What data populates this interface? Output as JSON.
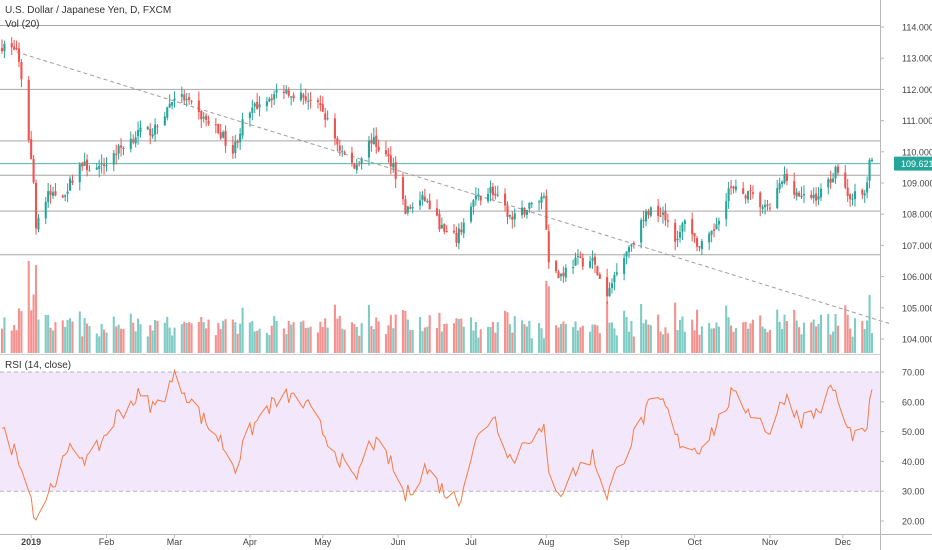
{
  "header": {
    "symbol_title": "U.S. Dollar / Japanese Yen, D, FXCM",
    "volume_label": "Vol (20)",
    "rsi_label": "RSI (14, close)"
  },
  "price_axis": {
    "ticks": [
      "114.000",
      "113.000",
      "112.000",
      "111.000",
      "110.000",
      "109.000",
      "108.000",
      "107.000",
      "106.000",
      "105.000",
      "104.000"
    ],
    "last_price": "109.621"
  },
  "rsi_axis": {
    "ticks": [
      "70.00",
      "60.00",
      "50.00",
      "40.00",
      "30.00",
      "20.00"
    ]
  },
  "time_axis": {
    "labels": [
      "2019",
      "Feb",
      "Mar",
      "Apr",
      "May",
      "Jun",
      "Jul",
      "Aug",
      "Sep",
      "Oct",
      "Nov",
      "Dec"
    ]
  },
  "colors": {
    "up": "#26a69a",
    "down": "#ef5350",
    "vol_up": "#7fccc4",
    "vol_down": "#f5928f",
    "rsi_line": "#f57c45",
    "rsi_band": "#f3e7fb",
    "last_price_bg": "#26a69a",
    "trendline": "#9e9e9e"
  },
  "chart_data": [
    {
      "type": "candlestick",
      "title": "U.S. Dollar / Japanese Yen, D, FXCM",
      "x_range": [
        "2018-12-20",
        "2019-12-13"
      ],
      "ylim": [
        103.6,
        114.4
      ],
      "horizontal_levels": [
        114.05,
        112.0,
        110.35,
        109.25,
        108.1,
        106.7
      ],
      "last_price": 109.621,
      "trendline": {
        "from": [
          "2018-12-26",
          113.2
        ],
        "to": [
          "2019-12-20",
          104.5
        ]
      },
      "anchors": [
        [
          "2018-12-20",
          113.4
        ],
        [
          "2018-12-26",
          113.3
        ],
        [
          "2018-12-31",
          110.5
        ],
        [
          "2019-01-02",
          109.0
        ],
        [
          "2019-01-03",
          107.7
        ],
        [
          "2019-01-08",
          108.6
        ],
        [
          "2019-01-15",
          108.7
        ],
        [
          "2019-01-21",
          109.6
        ],
        [
          "2019-01-29",
          109.4
        ],
        [
          "2019-02-05",
          110.0
        ],
        [
          "2019-02-14",
          110.6
        ],
        [
          "2019-02-21",
          110.7
        ],
        [
          "2019-03-01",
          111.8
        ],
        [
          "2019-03-05",
          111.7
        ],
        [
          "2019-03-11",
          111.2
        ],
        [
          "2019-03-20",
          110.6
        ],
        [
          "2019-03-25",
          110.0
        ],
        [
          "2019-03-29",
          110.9
        ],
        [
          "2019-04-05",
          111.6
        ],
        [
          "2019-04-15",
          112.0
        ],
        [
          "2019-04-25",
          111.7
        ],
        [
          "2019-05-01",
          111.3
        ],
        [
          "2019-05-08",
          110.1
        ],
        [
          "2019-05-14",
          109.5
        ],
        [
          "2019-05-21",
          110.4
        ],
        [
          "2019-05-30",
          109.6
        ],
        [
          "2019-06-04",
          108.1
        ],
        [
          "2019-06-12",
          108.5
        ],
        [
          "2019-06-20",
          107.4
        ],
        [
          "2019-06-25",
          107.2
        ],
        [
          "2019-07-02",
          108.4
        ],
        [
          "2019-07-09",
          108.8
        ],
        [
          "2019-07-18",
          107.8
        ],
        [
          "2019-07-24",
          108.2
        ],
        [
          "2019-07-31",
          108.6
        ],
        [
          "2019-08-02",
          106.6
        ],
        [
          "2019-08-06",
          106.0
        ],
        [
          "2019-08-13",
          106.5
        ],
        [
          "2019-08-20",
          106.5
        ],
        [
          "2019-08-26",
          105.3
        ],
        [
          "2019-08-30",
          106.3
        ],
        [
          "2019-09-05",
          107.1
        ],
        [
          "2019-09-12",
          108.1
        ],
        [
          "2019-09-18",
          108.1
        ],
        [
          "2019-09-24",
          107.1
        ],
        [
          "2019-09-27",
          107.9
        ],
        [
          "2019-10-03",
          106.9
        ],
        [
          "2019-10-08",
          107.3
        ],
        [
          "2019-10-15",
          108.8
        ],
        [
          "2019-10-24",
          108.6
        ],
        [
          "2019-10-31",
          108.1
        ],
        [
          "2019-11-07",
          109.2
        ],
        [
          "2019-11-14",
          108.5
        ],
        [
          "2019-11-21",
          108.6
        ],
        [
          "2019-11-29",
          109.5
        ],
        [
          "2019-12-03",
          108.6
        ],
        [
          "2019-12-10",
          108.6
        ],
        [
          "2019-12-12",
          109.6
        ],
        [
          "2019-12-13",
          109.621
        ]
      ]
    },
    {
      "type": "bar",
      "title": "Vol (20)",
      "note": "daily volume bars colored by candle direction"
    },
    {
      "type": "line",
      "title": "RSI (14, close)",
      "ylim": [
        17,
        73
      ],
      "band": [
        30,
        70
      ],
      "anchors": [
        [
          "2018-12-20",
          50
        ],
        [
          "2018-12-28",
          40
        ],
        [
          "2019-01-03",
          21
        ],
        [
          "2019-01-10",
          33
        ],
        [
          "2019-01-18",
          45
        ],
        [
          "2019-01-25",
          40
        ],
        [
          "2019-02-05",
          55
        ],
        [
          "2019-02-14",
          62
        ],
        [
          "2019-02-21",
          58
        ],
        [
          "2019-03-01",
          68
        ],
        [
          "2019-03-05",
          64
        ],
        [
          "2019-03-12",
          55
        ],
        [
          "2019-03-20",
          47
        ],
        [
          "2019-03-26",
          38
        ],
        [
          "2019-04-01",
          50
        ],
        [
          "2019-04-08",
          58
        ],
        [
          "2019-04-17",
          62
        ],
        [
          "2019-04-25",
          58
        ],
        [
          "2019-05-01",
          50
        ],
        [
          "2019-05-08",
          41
        ],
        [
          "2019-05-14",
          33
        ],
        [
          "2019-05-21",
          47
        ],
        [
          "2019-05-28",
          41
        ],
        [
          "2019-06-04",
          28
        ],
        [
          "2019-06-12",
          38
        ],
        [
          "2019-06-20",
          30
        ],
        [
          "2019-06-26",
          27
        ],
        [
          "2019-07-02",
          45
        ],
        [
          "2019-07-10",
          56
        ],
        [
          "2019-07-18",
          40
        ],
        [
          "2019-07-24",
          48
        ],
        [
          "2019-07-31",
          50
        ],
        [
          "2019-08-02",
          35
        ],
        [
          "2019-08-07",
          30
        ],
        [
          "2019-08-13",
          37
        ],
        [
          "2019-08-20",
          42
        ],
        [
          "2019-08-26",
          29
        ],
        [
          "2019-09-02",
          42
        ],
        [
          "2019-09-12",
          58
        ],
        [
          "2019-09-18",
          60
        ],
        [
          "2019-09-24",
          47
        ],
        [
          "2019-10-02",
          44
        ],
        [
          "2019-10-10",
          52
        ],
        [
          "2019-10-16",
          62
        ],
        [
          "2019-10-24",
          57
        ],
        [
          "2019-11-01",
          50
        ],
        [
          "2019-11-07",
          62
        ],
        [
          "2019-11-14",
          54
        ],
        [
          "2019-11-21",
          57
        ],
        [
          "2019-11-27",
          65
        ],
        [
          "2019-12-03",
          50
        ],
        [
          "2019-12-10",
          48
        ],
        [
          "2019-12-13",
          63
        ]
      ]
    }
  ]
}
